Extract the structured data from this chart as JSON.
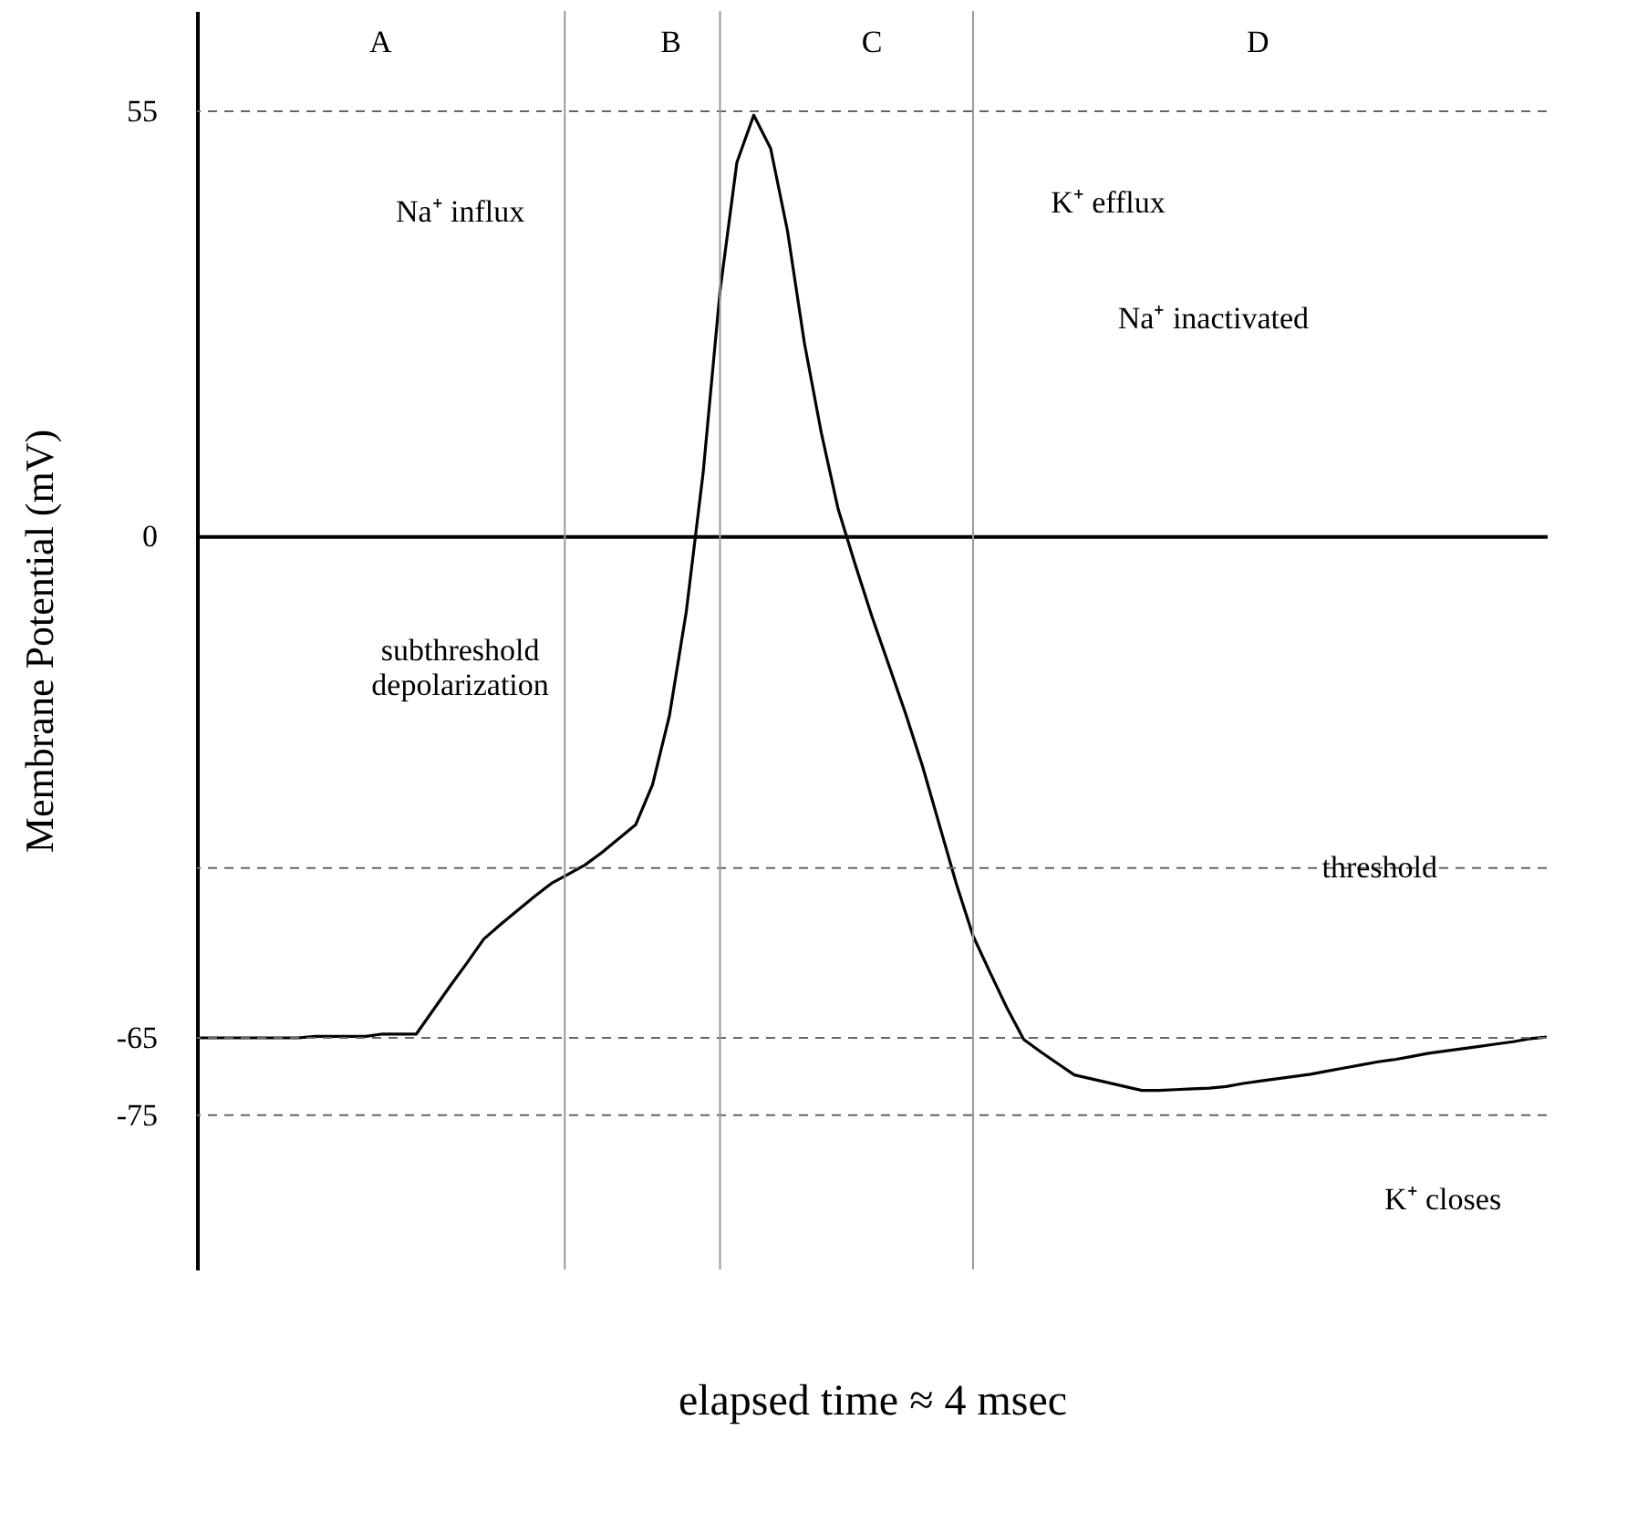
{
  "chart_data": {
    "type": "line",
    "ylabel": "Membrane Potential (mV)",
    "xlabel": "elapsed time ≈ 4 msec",
    "tick_labels": "y",
    "ylim": [
      -95,
      68
    ],
    "yticks": [
      55,
      0,
      -65,
      -75
    ],
    "categories": [
      null,
      null,
      null,
      null,
      null,
      null,
      null,
      null,
      null,
      null,
      null,
      null,
      null,
      null,
      null,
      null,
      null,
      null,
      null,
      null,
      null,
      null,
      null,
      null,
      null,
      null,
      null,
      null,
      null,
      null,
      null,
      null,
      null,
      null,
      null,
      null,
      null,
      null,
      null,
      null,
      null,
      null,
      null,
      null,
      null,
      null,
      null,
      null,
      null,
      null,
      null,
      null,
      null,
      null,
      null,
      null,
      null,
      null,
      null,
      null,
      null,
      null,
      null,
      null,
      null,
      null,
      null,
      null,
      null,
      null,
      null,
      null,
      null,
      null,
      null,
      null,
      null,
      null,
      null,
      null,
      null
    ],
    "series": [
      {
        "color": "#000000",
        "values": [
          -65,
          -65,
          -65,
          -65,
          -65,
          -65,
          -65,
          -64.8,
          -64.8,
          -64.8,
          -64.8,
          -64.5,
          -64.5,
          -64.5,
          -61.4,
          -58.3,
          -55.3,
          -52.2,
          -50.3,
          -48.5,
          -46.7,
          -45,
          -43.8,
          -42.6,
          -41,
          -39.2,
          -37.4,
          -32.2,
          -23.3,
          -9.8,
          8.2,
          31.7,
          48.4,
          54.5,
          50.2,
          39.5,
          25,
          13.4,
          3.5,
          -3.6,
          -10.4,
          -16.7,
          -23,
          -29.8,
          -37.4,
          -45,
          -51.8,
          -56.5,
          -61.1,
          -65.2,
          -66.8,
          -68.3,
          -69.8,
          -70.3,
          -70.8,
          -71.3,
          -71.8,
          -71.8,
          -71.7,
          -71.6,
          -71.5,
          -71.3,
          -70.9,
          -70.6,
          -70.3,
          -70,
          -69.7,
          -69.3,
          -68.9,
          -68.5,
          -68.1,
          -67.8,
          -67.4,
          -67,
          -66.7,
          -66.4,
          -66.1,
          -65.8,
          -65.5,
          -65.1,
          -64.9
        ]
      }
    ],
    "ref_lines": [
      {
        "axis": "y",
        "value": 55,
        "color": "#666666",
        "line_style": "dashed"
      },
      {
        "axis": "y",
        "value": -43,
        "label": "threshold",
        "color": "#666666",
        "line_style": "dashed"
      },
      {
        "axis": "y",
        "value": -65,
        "color": "#666666",
        "line_style": "dashed"
      },
      {
        "axis": "y",
        "value": -75,
        "color": "#666666",
        "line_style": "dashed"
      }
    ],
    "annotations": [
      "A",
      "B",
      "C",
      "D",
      "Na⁺ influx",
      "K⁺ efflux",
      "Na⁺ inactivated",
      "subthreshold\ndepolarization",
      "K⁺ closes"
    ]
  }
}
